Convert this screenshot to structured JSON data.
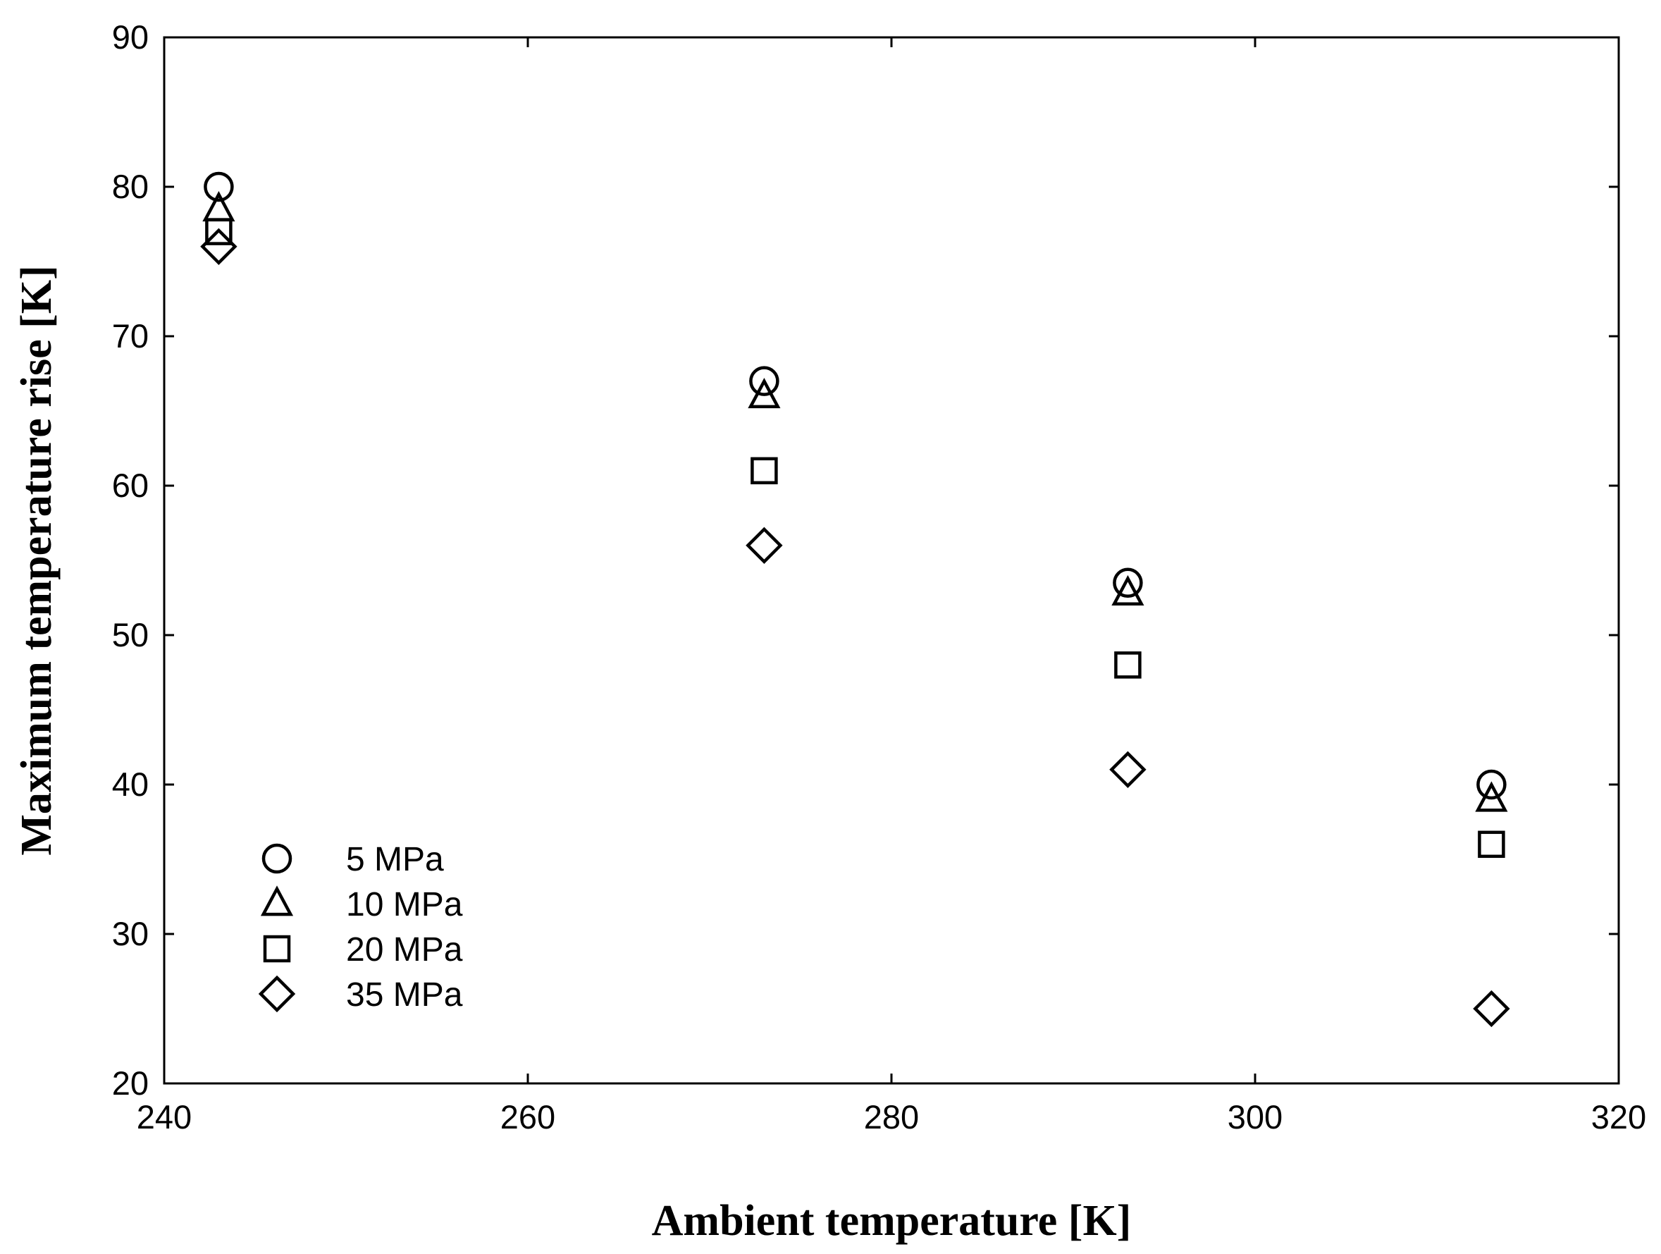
{
  "chart_data": {
    "type": "scatter",
    "title": "",
    "xlabel": "Ambient temperature [K]",
    "ylabel": "Maximum temperature rise [K]",
    "xlim": [
      240,
      320
    ],
    "ylim": [
      20,
      90
    ],
    "xticks": [
      240,
      260,
      280,
      300,
      320
    ],
    "yticks": [
      20,
      30,
      40,
      50,
      60,
      70,
      80,
      90
    ],
    "grid": false,
    "legend_position": "lower-left",
    "series": [
      {
        "name": "5 MPa",
        "marker": "circle",
        "color": "#000000",
        "points": [
          {
            "x": 243,
            "y": 80
          },
          {
            "x": 273,
            "y": 67
          },
          {
            "x": 293,
            "y": 53.5
          },
          {
            "x": 313,
            "y": 40
          }
        ]
      },
      {
        "name": "10 MPa",
        "marker": "triangle",
        "color": "#000000",
        "points": [
          {
            "x": 243,
            "y": 78.5
          },
          {
            "x": 273,
            "y": 66
          },
          {
            "x": 293,
            "y": 52.8
          },
          {
            "x": 313,
            "y": 39
          }
        ]
      },
      {
        "name": "20 MPa",
        "marker": "square",
        "color": "#000000",
        "points": [
          {
            "x": 243,
            "y": 77
          },
          {
            "x": 273,
            "y": 61
          },
          {
            "x": 293,
            "y": 48
          },
          {
            "x": 313,
            "y": 36
          }
        ]
      },
      {
        "name": "35 MPa",
        "marker": "diamond",
        "color": "#000000",
        "points": [
          {
            "x": 243,
            "y": 76
          },
          {
            "x": 273,
            "y": 56
          },
          {
            "x": 293,
            "y": 41
          },
          {
            "x": 313,
            "y": 25
          }
        ]
      }
    ]
  }
}
